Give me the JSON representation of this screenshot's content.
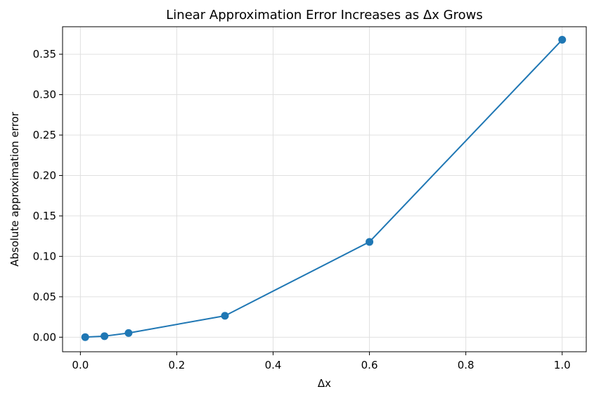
{
  "chart_data": {
    "type": "line",
    "title": "Linear Approximation Error Increases as Δx Grows",
    "xlabel": "Δx",
    "ylabel": "Absolute approximation error",
    "xlim": [
      -0.037,
      1.05
    ],
    "ylim": [
      -0.018,
      0.384
    ],
    "xticks": [
      0.0,
      0.2,
      0.4,
      0.6,
      0.8,
      1.0
    ],
    "xtick_labels": [
      "0.0",
      "0.2",
      "0.4",
      "0.6",
      "0.8",
      "1.0"
    ],
    "yticks": [
      0.0,
      0.05,
      0.1,
      0.15,
      0.2,
      0.25,
      0.3,
      0.35
    ],
    "ytick_labels": [
      "0.00",
      "0.05",
      "0.10",
      "0.15",
      "0.20",
      "0.25",
      "0.30",
      "0.35"
    ],
    "grid": true,
    "legend": false,
    "series": [
      {
        "color": "#1f77b4",
        "marker": "circle",
        "x": [
          0.01,
          0.05,
          0.1,
          0.3,
          0.6,
          1.0
        ],
        "y": [
          0.0001,
          0.0013,
          0.0052,
          0.0265,
          0.1179,
          0.3679
        ]
      }
    ]
  }
}
